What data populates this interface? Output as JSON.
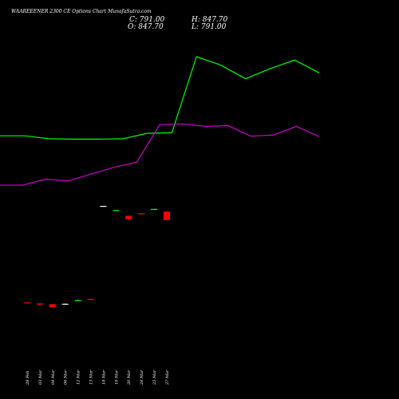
{
  "header": {
    "title": "WAAREEENER 2300  CE Options  Chart MunafaSutra.com",
    "close": "C: 791.00",
    "high": "H: 847.70",
    "open": "O: 847.70",
    "low": "L: 791.00"
  },
  "chart_data": {
    "type": "candlestick",
    "categories": [
      "28 Feb",
      "03 Mar",
      "04 Mar",
      "06 Mar",
      "12 Mar",
      "13 Mar",
      "18 Mar",
      "19 Mar",
      "20 Mar",
      "24 Mar",
      "25 Mar",
      "27 Mar"
    ],
    "ohlc": [
      {
        "o": 242,
        "h": 242,
        "l": 240,
        "c": 240
      },
      {
        "o": 235,
        "h": 235,
        "l": 218,
        "c": 228
      },
      {
        "o": 230,
        "h": 230,
        "l": 208,
        "c": 210
      },
      {
        "o": 233,
        "h": 235,
        "l": 232,
        "c": 233
      },
      {
        "o": 255,
        "h": 262,
        "l": 255,
        "c": 257
      },
      {
        "o": 265,
        "h": 265,
        "l": 258,
        "c": 260
      },
      {
        "o": 885,
        "h": 886,
        "l": 885,
        "c": 886
      },
      {
        "o": 856,
        "h": 858,
        "l": 856,
        "c": 858
      },
      {
        "o": 820,
        "h": 820,
        "l": 791,
        "c": 797
      },
      {
        "o": 837,
        "h": 837,
        "l": 830,
        "c": 830
      },
      {
        "o": 859,
        "h": 866,
        "l": 859,
        "c": 866
      },
      {
        "o": 847.7,
        "h": 847.7,
        "l": 791,
        "c": 791
      }
    ],
    "overlay_lines": [
      {
        "color": "#00ff00",
        "values": [
          1790,
          1790,
          1755,
          1750,
          1750,
          1755,
          1820,
          1825,
          2720,
          2620,
          2460,
          2580,
          2680,
          2530
        ]
      },
      {
        "color": "#cc00cc",
        "values": [
          1210,
          1210,
          1280,
          1260,
          1340,
          1420,
          1480,
          1920,
          1930,
          1900,
          1910,
          1785,
          1800,
          1900,
          1780
        ]
      }
    ],
    "colors": {
      "up": "#00ff00",
      "down": "#ff0000",
      "neutral": "#ffffff",
      "background": "#000000"
    }
  }
}
